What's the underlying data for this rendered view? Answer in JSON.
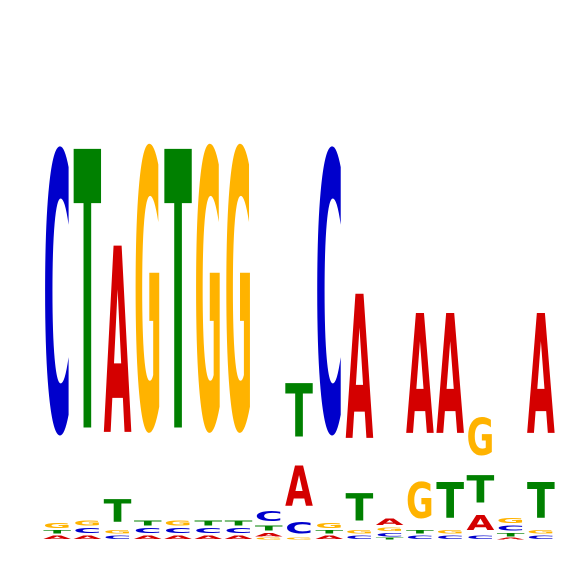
{
  "chart_data": {
    "type": "sequence-logo",
    "alphabet": [
      "A",
      "C",
      "G",
      "T"
    ],
    "colors": {
      "A": "#d40000",
      "C": "#0000cc",
      "G": "#ffb300",
      "T": "#008000"
    },
    "ylim": [
      0,
      2
    ],
    "positions": [
      {
        "A": 0.02,
        "C": 1.72,
        "G": 0.03,
        "T": 0.02
      },
      {
        "A": 0.02,
        "C": 0.03,
        "G": 0.03,
        "T": 1.72
      },
      {
        "A": 1.15,
        "C": 0.02,
        "G": 0.02,
        "T": 0.14
      },
      {
        "A": 0.02,
        "C": 0.03,
        "G": 1.72,
        "T": 0.03
      },
      {
        "A": 0.02,
        "C": 0.03,
        "G": 0.03,
        "T": 1.72
      },
      {
        "A": 0.02,
        "C": 0.03,
        "G": 1.72,
        "T": 0.03
      },
      {
        "A": 0.02,
        "C": 0.03,
        "G": 1.72,
        "T": 0.03
      },
      {
        "A": 0.02,
        "C": 0.06,
        "G": 0.01,
        "T": 0.03
      },
      {
        "A": 0.25,
        "C": 0.07,
        "G": 0.01,
        "T": 0.33
      },
      {
        "A": 0.02,
        "C": 1.72,
        "G": 0.03,
        "T": 0.02
      },
      {
        "A": 0.89,
        "C": 0.02,
        "G": 0.02,
        "T": 0.17
      },
      {
        "A": 0.04,
        "C": 0.02,
        "G": 0.02,
        "T": 0.01
      },
      {
        "A": 0.74,
        "C": 0.02,
        "G": 0.22,
        "T": 0.02
      },
      {
        "A": 0.74,
        "C": 0.02,
        "G": 0.02,
        "T": 0.22
      },
      {
        "A": 0.09,
        "C": 0.02,
        "G": 0.23,
        "T": 0.17
      },
      {
        "A": 0.01,
        "C": 0.03,
        "G": 0.03,
        "T": 0.02
      },
      {
        "A": 0.74,
        "C": 0.02,
        "G": 0.02,
        "T": 0.22
      }
    ]
  }
}
